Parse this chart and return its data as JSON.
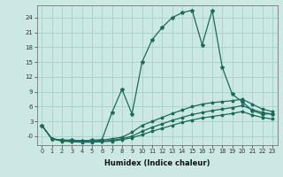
{
  "xlabel": "Humidex (Indice chaleur)",
  "background_color": "#cce8e4",
  "grid_color": "#aad4ce",
  "line_color": "#1a6b5a",
  "xlim": [
    -0.5,
    23.5
  ],
  "ylim": [
    -1.8,
    26.5
  ],
  "xticks": [
    0,
    1,
    2,
    3,
    4,
    5,
    6,
    7,
    8,
    9,
    10,
    11,
    12,
    13,
    14,
    15,
    16,
    17,
    18,
    19,
    20,
    21,
    22,
    23
  ],
  "yticks": [
    0,
    3,
    6,
    9,
    12,
    15,
    18,
    21,
    24
  ],
  "ytick_labels": [
    "-0",
    "3",
    "6",
    "9",
    "12",
    "15",
    "18",
    "21",
    "24"
  ],
  "line1_x": [
    0,
    1,
    2,
    3,
    4,
    5,
    6,
    7,
    8,
    9,
    10,
    11,
    12,
    13,
    14,
    15,
    16,
    17,
    18,
    19,
    20,
    21,
    22,
    23
  ],
  "line1_y": [
    2.2,
    -0.5,
    -0.8,
    -0.8,
    -0.9,
    -0.9,
    -0.8,
    -0.5,
    -0.2,
    0.8,
    2.2,
    3.0,
    3.8,
    4.6,
    5.3,
    6.0,
    6.5,
    6.8,
    7.0,
    7.2,
    7.5,
    6.5,
    5.5,
    5.0
  ],
  "line2_x": [
    0,
    1,
    2,
    3,
    4,
    5,
    6,
    7,
    8,
    9,
    10,
    11,
    12,
    13,
    14,
    15,
    16,
    17,
    18,
    19,
    20,
    21,
    22,
    23
  ],
  "line2_y": [
    2.2,
    -0.5,
    -0.9,
    -1.0,
    -1.1,
    -1.1,
    -1.0,
    -0.8,
    -0.5,
    0.0,
    1.0,
    1.8,
    2.5,
    3.2,
    3.8,
    4.4,
    4.8,
    5.2,
    5.5,
    5.8,
    6.2,
    5.4,
    4.8,
    4.5
  ],
  "line3_x": [
    0,
    1,
    2,
    3,
    4,
    5,
    6,
    7,
    8,
    9,
    10,
    11,
    12,
    13,
    14,
    15,
    16,
    17,
    18,
    19,
    20,
    21,
    22,
    23
  ],
  "line3_y": [
    2.2,
    -0.5,
    -1.0,
    -1.1,
    -1.2,
    -1.2,
    -1.1,
    -1.0,
    -0.7,
    -0.3,
    0.3,
    1.0,
    1.6,
    2.2,
    2.8,
    3.3,
    3.7,
    4.0,
    4.3,
    4.6,
    5.0,
    4.3,
    3.8,
    3.5
  ],
  "line_main_x": [
    0,
    1,
    2,
    3,
    4,
    5,
    6,
    7,
    8,
    9,
    10,
    11,
    12,
    13,
    14,
    15,
    16,
    17,
    18,
    19,
    20,
    21,
    22,
    23
  ],
  "line_main_y": [
    2.2,
    -0.5,
    -0.8,
    -0.8,
    -0.9,
    -0.8,
    -0.7,
    4.8,
    9.5,
    4.5,
    15.0,
    19.5,
    22.0,
    24.0,
    25.0,
    25.5,
    18.5,
    25.5,
    14.0,
    8.5,
    7.0,
    5.2,
    4.5,
    4.5
  ]
}
